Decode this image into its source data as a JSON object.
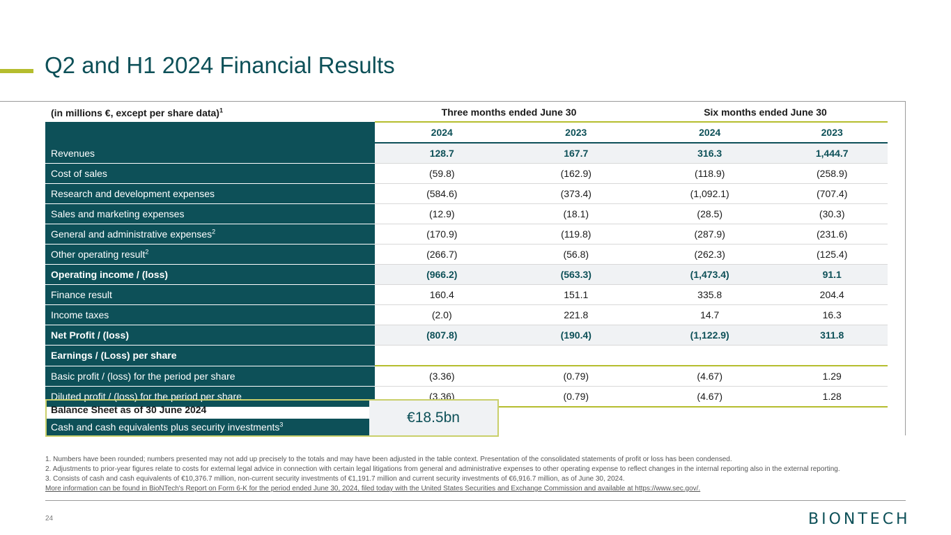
{
  "title": "Q2 and H1 2024 Financial Results",
  "table": {
    "unit_label": "(in millions €, except per share data)",
    "unit_note": "1",
    "group_three": "Three months ended June 30",
    "group_six": "Six months ended June 30",
    "years": [
      "2024",
      "2023",
      "2024",
      "2023"
    ],
    "rows": [
      {
        "label": "Revenues",
        "sup": "",
        "values": [
          "128.7",
          "167.7",
          "316.3",
          "1,444.7"
        ]
      },
      {
        "label": "Cost of sales",
        "sup": "",
        "values": [
          "(59.8)",
          "(162.9)",
          "(118.9)",
          "(258.9)"
        ]
      },
      {
        "label": "Research and development expenses",
        "sup": "",
        "values": [
          "(584.6)",
          "(373.4)",
          "(1,092.1)",
          "(707.4)"
        ]
      },
      {
        "label": "Sales and marketing expenses",
        "sup": "",
        "values": [
          "(12.9)",
          "(18.1)",
          "(28.5)",
          "(30.3)"
        ]
      },
      {
        "label": "General and administrative expenses",
        "sup": "2",
        "values": [
          "(170.9)",
          "(119.8)",
          "(287.9)",
          "(231.6)"
        ]
      },
      {
        "label": "Other operating result",
        "sup": "2",
        "values": [
          "(266.7)",
          "(56.8)",
          "(262.3)",
          "(125.4)"
        ]
      },
      {
        "label": "Operating income / (loss)",
        "sup": "",
        "values": [
          "(966.2)",
          "(563.3)",
          "(1,473.4)",
          "91.1"
        ]
      },
      {
        "label": "Finance result",
        "sup": "",
        "values": [
          "160.4",
          "151.1",
          "335.8",
          "204.4"
        ]
      },
      {
        "label": "Income taxes",
        "sup": "",
        "values": [
          "(2.0)",
          "221.8",
          "14.7",
          "16.3"
        ]
      },
      {
        "label": "Net Profit / (loss)",
        "sup": "",
        "values": [
          "(807.8)",
          "(190.4)",
          "(1,122.9)",
          "311.8"
        ]
      },
      {
        "label": "Earnings / (Loss) per share",
        "sup": "",
        "values": [
          "",
          "",
          "",
          ""
        ]
      },
      {
        "label": "Basic profit / (loss) for the period per share",
        "sup": "",
        "values": [
          "(3.36)",
          "(0.79)",
          "(4.67)",
          "1.29"
        ]
      },
      {
        "label": "Diluted profit / (loss) for the period per share",
        "sup": "",
        "values": [
          "(3.36)",
          "(0.79)",
          "(4.67)",
          "1.28"
        ]
      }
    ]
  },
  "balance_sheet": {
    "heading": "Balance Sheet as of 30 June 2024",
    "label": "Cash and cash equivalents plus security investments",
    "label_sup": "3",
    "value": "€18.5bn"
  },
  "footnotes": {
    "f1": "1. Numbers have been rounded; numbers presented may not add up precisely to the totals and may have been adjusted in the table context. Presentation of the consolidated statements of profit or loss has been condensed.",
    "f2": "2. Adjustments to prior-year figures relate to costs for external legal advice in connection with certain legal litigations from general and administrative expenses to other operating expense to reflect changes in the internal reporting also in the external reporting.",
    "f3": "3. Consists of cash and cash equivalents of €10,376.7 million, non-current security investments of €1,191.7 million and current security investments of €6,916.7 million, as of June 30, 2024.",
    "more": "More information can be found in BioNTech's Report on Form 6-K for the period ended June 30, 2024, filed today with the United States Securities and Exchange Commission and available at https://www.sec.gov/."
  },
  "page_number": "24",
  "logo_text": "BIONTECH"
}
